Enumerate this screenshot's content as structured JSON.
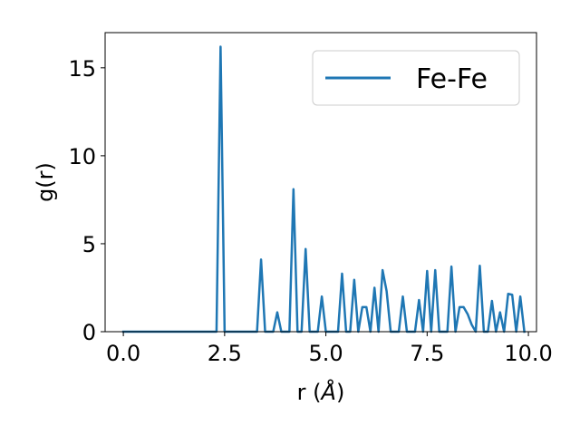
{
  "chart_data": {
    "type": "line",
    "title": "",
    "xlabel_main": "r (",
    "xlabel_unit": "Å",
    "xlabel_close": ")",
    "ylabel": "g(r)",
    "xlim": [
      -0.45,
      10.2
    ],
    "ylim": [
      0,
      17
    ],
    "xticks": [
      0.0,
      2.5,
      5.0,
      7.5,
      10.0
    ],
    "xtick_labels": [
      "0.0",
      "2.5",
      "5.0",
      "7.5",
      "10.0"
    ],
    "yticks": [
      0,
      5,
      10,
      15
    ],
    "ytick_labels": [
      "0",
      "5",
      "10",
      "15"
    ],
    "grid": false,
    "legend_position": "top-right",
    "color": "#1f77b4",
    "series": [
      {
        "name": "Fe-Fe",
        "x": [
          0.0,
          0.1,
          0.2,
          0.3,
          0.4,
          0.5,
          0.6,
          0.7,
          0.8,
          0.9,
          1.0,
          1.1,
          1.2,
          1.3,
          1.4,
          1.5,
          1.6,
          1.7,
          1.8,
          1.9,
          2.0,
          2.1,
          2.2,
          2.3,
          2.4,
          2.5,
          2.6,
          2.7,
          2.8,
          2.9,
          3.0,
          3.1,
          3.2,
          3.3,
          3.4,
          3.5,
          3.6,
          3.7,
          3.8,
          3.9,
          4.0,
          4.1,
          4.2,
          4.3,
          4.4,
          4.5,
          4.6,
          4.7,
          4.8,
          4.9,
          5.0,
          5.1,
          5.2,
          5.3,
          5.4,
          5.5,
          5.6,
          5.7,
          5.8,
          5.9,
          6.0,
          6.1,
          6.2,
          6.3,
          6.4,
          6.5,
          6.6,
          6.7,
          6.8,
          6.9,
          7.0,
          7.1,
          7.2,
          7.3,
          7.4,
          7.5,
          7.6,
          7.7,
          7.8,
          7.9,
          8.0,
          8.1,
          8.2,
          8.3,
          8.4,
          8.5,
          8.6,
          8.7,
          8.8,
          8.9,
          9.0,
          9.1,
          9.2,
          9.3,
          9.4,
          9.5,
          9.6,
          9.7,
          9.8,
          9.9
        ],
        "y": [
          0,
          0,
          0,
          0,
          0,
          0,
          0,
          0,
          0,
          0,
          0,
          0,
          0,
          0,
          0,
          0,
          0,
          0,
          0,
          0,
          0,
          0,
          0,
          0,
          16.2,
          0,
          0,
          0,
          0,
          0,
          0,
          0,
          0,
          0,
          4.1,
          0,
          0,
          0,
          1.1,
          0,
          0,
          0,
          8.1,
          0,
          0,
          4.7,
          0,
          0,
          0,
          2.0,
          0,
          0,
          0,
          0,
          3.3,
          0,
          0,
          2.95,
          0,
          1.4,
          1.4,
          0,
          2.5,
          0,
          3.5,
          2.3,
          0,
          0,
          0,
          2.0,
          0,
          0,
          0,
          1.8,
          0,
          3.45,
          0,
          3.5,
          0,
          0,
          0,
          3.7,
          0,
          1.4,
          1.4,
          1.0,
          0.4,
          0,
          3.75,
          0,
          0,
          1.75,
          0,
          1.1,
          0,
          2.15,
          2.1,
          0,
          2.0,
          0
        ]
      }
    ]
  }
}
